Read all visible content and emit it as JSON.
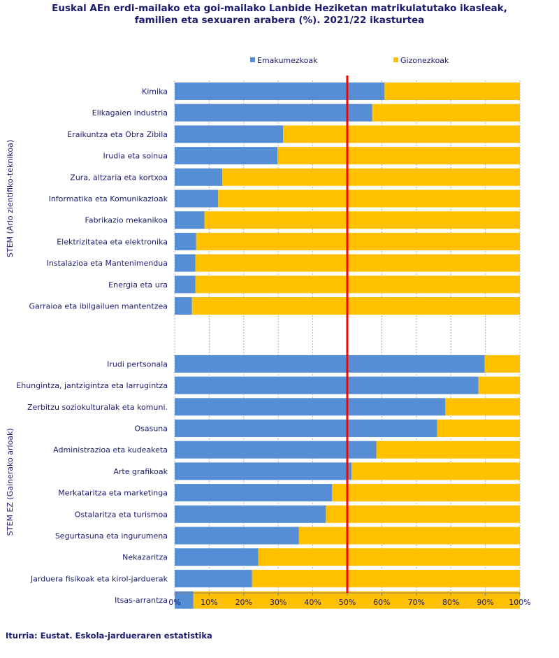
{
  "title_line1": "Euskal AEn erdi-mailako eta goi-mailako Lanbide Heziketan matrikulatutako ikasleak,",
  "title_line2": "familien eta sexuaren arabera (%). 2021/22 ikasturtea",
  "source": "Iturria: Eustat. Eskola-jardueraren estatistika",
  "colors": {
    "women": "#558ed5",
    "men": "#ffc000",
    "reference_line": "#ff0000",
    "grid": "#b0b0b0",
    "text": "#1a1a6e"
  },
  "chart_data": {
    "type": "bar",
    "orientation": "horizontal",
    "stacked": "percent",
    "xlim": [
      0,
      100
    ],
    "x_ticks": [
      "0%",
      "10%",
      "20%",
      "30%",
      "40%",
      "50%",
      "60%",
      "70%",
      "80%",
      "90%",
      "100%"
    ],
    "reference_line_x": 50,
    "legend": {
      "position": "top",
      "entries": [
        "Emakumezkoak",
        "Gizonezkoak"
      ]
    },
    "grid": true,
    "series": [
      {
        "name": "Emakumezkoak"
      },
      {
        "name": "Gizonezkoak"
      }
    ],
    "groups": [
      {
        "label": "STEM (Arlo zientifiko-teknikoa)",
        "categories": [
          "Kimika",
          "Elikagaien industria",
          "Eraikuntza eta Obra Zibila",
          "Irudia eta soinua",
          "Zura, altzaria eta kortxoa",
          "Informatika eta Komunikazioak",
          "Fabrikazio mekanikoa",
          "Elektrizitatea eta elektronika",
          "Instalazioa eta Mantenimendua",
          "Energia eta ura",
          "Garraioa eta ibilgailuen mantentzea"
        ],
        "women": [
          60.8,
          57.2,
          31.4,
          29.8,
          13.8,
          12.6,
          8.6,
          6.2,
          6.0,
          6.0,
          5.0
        ],
        "men": [
          39.2,
          42.8,
          68.6,
          70.2,
          86.2,
          87.4,
          91.4,
          93.8,
          94.0,
          94.0,
          95.0
        ]
      },
      {
        "label": "STEM EZ (Gainerako arloak)",
        "categories": [
          "Irudi pertsonala",
          "Ehungintza, jantzigintza eta larrugintza",
          "Zerbitzu soziokulturalak eta komuni.",
          "Osasuna",
          "Administrazioa eta kudeaketa",
          "Arte grafikoak",
          "Merkataritza eta marketinga",
          "Ostalaritza eta turismoa",
          "Segurtasuna eta ingurumena",
          "Nekazaritza",
          "Jarduera fisikoak eta kirol-jarduerak",
          "Itsas-arrantza"
        ],
        "women": [
          89.8,
          88.0,
          78.4,
          76.0,
          58.4,
          51.2,
          45.6,
          43.8,
          36.0,
          24.2,
          22.4,
          5.4
        ],
        "men": [
          10.2,
          12.0,
          21.6,
          24.0,
          41.6,
          48.8,
          54.4,
          56.2,
          64.0,
          75.8,
          77.6,
          94.6
        ]
      }
    ]
  }
}
